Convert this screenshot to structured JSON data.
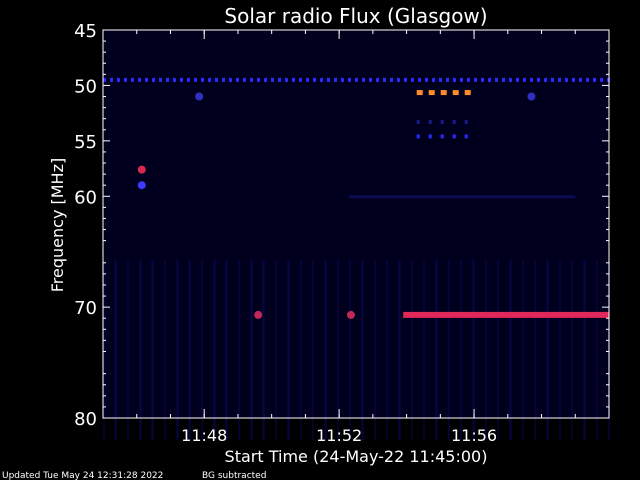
{
  "chart_data": {
    "type": "heatmap",
    "title": "Solar radio Flux (Glasgow)",
    "xlabel": "Start Time (24-May-22 11:45:00)",
    "ylabel": "Frequency [MHz]",
    "x_unit": "time (minutes after 11:45:00)",
    "xlim_minutes": [
      0,
      15
    ],
    "ylim_mhz": [
      45,
      80
    ],
    "y_inverted": true,
    "x_ticks": [
      {
        "label": "11:48",
        "minutes": 3
      },
      {
        "label": "11:52",
        "minutes": 7
      },
      {
        "label": "11:56",
        "minutes": 11
      }
    ],
    "y_ticks": [
      {
        "label": "45",
        "mhz": 45
      },
      {
        "label": "50",
        "mhz": 50
      },
      {
        "label": "55",
        "mhz": 55
      },
      {
        "label": "60",
        "mhz": 60
      },
      {
        "label": "70",
        "mhz": 70
      },
      {
        "label": "80",
        "mhz": 80
      }
    ],
    "background_color": "#00001e",
    "features": [
      {
        "name": "dashed band near 49.5 MHz",
        "mhz": 49.5,
        "t_start": 0,
        "t_end": 15,
        "dashed": true,
        "color": "#2a2aff"
      },
      {
        "name": "bright segments near 50.6 MHz",
        "mhz": 50.6,
        "t_start": 9.3,
        "t_end": 11.0,
        "dashed": true,
        "color": "#ff8c28"
      },
      {
        "name": "faint segments near 53.3 MHz",
        "mhz": 53.3,
        "t_start": 9.3,
        "t_end": 11.0,
        "dashed": true,
        "color": "#1a1a8a"
      },
      {
        "name": "segments near 54.6 MHz",
        "mhz": 54.6,
        "t_start": 9.3,
        "t_end": 11.0,
        "dashed": true,
        "color": "#2a2aff"
      },
      {
        "name": "faint band near 60 MHz",
        "mhz": 60.0,
        "t_start": 7.3,
        "t_end": 14.0,
        "dashed": false,
        "color": "#0c0c50"
      },
      {
        "name": "intense band near 70.7 MHz",
        "mhz": 70.7,
        "t_start": 8.9,
        "t_end": 15,
        "dashed": false,
        "color": "#e0285a"
      }
    ],
    "spots": [
      {
        "name": "burst near 58 MHz",
        "minutes": 1.15,
        "mhz": 57.6,
        "color": "#d82850"
      },
      {
        "name": "burst near 59 MHz",
        "minutes": 1.15,
        "mhz": 59.0,
        "color": "#3a3aff"
      },
      {
        "name": "spot 51 MHz",
        "minutes": 2.85,
        "mhz": 51.0,
        "color": "#3030c0"
      },
      {
        "name": "spot 51 MHz late",
        "minutes": 12.7,
        "mhz": 51.0,
        "color": "#3030c0"
      },
      {
        "name": "spike 70.7 MHz",
        "minutes": 4.6,
        "mhz": 70.7,
        "color": "#c0285a"
      },
      {
        "name": "spike 70.7 MHz b",
        "minutes": 7.35,
        "mhz": 70.7,
        "color": "#c0285a"
      }
    ]
  },
  "footer": {
    "updated": "Updated Tue May 24 12:31:28 2022",
    "note": "BG subtracted"
  }
}
